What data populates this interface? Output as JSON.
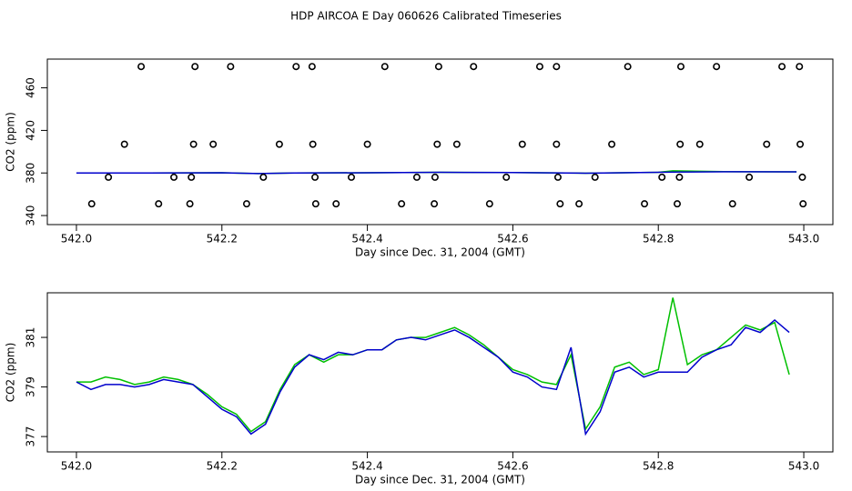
{
  "title": "HDP AIRCOA E  Day 060626  Calibrated Timeseries",
  "chart_data": [
    {
      "type": "line",
      "x_label": "Day since Dec. 31, 2004 (GMT)",
      "y_label": "CO2 (ppm)",
      "xlim": [
        541.96,
        543.04
      ],
      "ylim": [
        331.5,
        487
      ],
      "xticks": [
        {
          "value": 542.0,
          "label": "542.0"
        },
        542.2,
        542.4,
        542.6,
        542.8,
        {
          "value": 543.0,
          "label": "543.0"
        }
      ],
      "yticks": [
        340,
        380,
        420,
        460
      ],
      "x": [
        542.0,
        542.1,
        542.2,
        542.25,
        542.3,
        542.4,
        542.5,
        542.6,
        542.7,
        542.8,
        542.82,
        542.9,
        542.99
      ],
      "series": [
        {
          "color": "#00c000",
          "values": [
            380,
            380,
            380.2,
            379.5,
            380,
            380.2,
            380.6,
            380.4,
            379.8,
            380.6,
            382,
            381.2,
            381.0
          ]
        },
        {
          "color": "#0000cc",
          "values": [
            380,
            380,
            380.2,
            379.5,
            380,
            380.2,
            380.6,
            380.4,
            379.8,
            380.6,
            380.8,
            381.2,
            381.0
          ]
        }
      ],
      "points": {
        "color": "#000000",
        "x": [
          542.089,
          542.163,
          542.212,
          542.302,
          542.324,
          542.424,
          542.498,
          542.546,
          542.637,
          542.66,
          542.758,
          542.831,
          542.88,
          542.97,
          542.994,
          542.066,
          542.161,
          542.188,
          542.279,
          542.325,
          542.4,
          542.496,
          542.523,
          542.613,
          542.66,
          542.736,
          542.83,
          542.857,
          542.949,
          542.995,
          542.044,
          542.134,
          542.158,
          542.257,
          542.328,
          542.378,
          542.468,
          542.493,
          542.591,
          542.662,
          542.713,
          542.805,
          542.829,
          542.925,
          542.998,
          542.021,
          542.113,
          542.156,
          542.234,
          542.329,
          542.357,
          542.447,
          542.492,
          542.568,
          542.665,
          542.691,
          542.781,
          542.826,
          542.902,
          542.999
        ],
        "values": [
          480,
          480,
          480,
          480,
          480,
          480,
          480,
          480,
          480,
          480,
          480,
          480,
          480,
          480,
          480,
          407,
          407,
          407,
          407,
          407,
          407,
          407,
          407,
          407,
          407,
          407,
          407,
          407,
          407,
          407,
          376,
          376,
          376,
          376,
          376,
          376,
          376,
          376,
          376,
          376,
          376,
          376,
          376,
          376,
          376,
          351,
          351,
          351,
          351,
          351,
          351,
          351,
          351,
          351,
          351,
          351,
          351,
          351,
          351,
          351
        ]
      }
    },
    {
      "type": "line",
      "x_label": "Day since Dec. 31, 2004 (GMT)",
      "y_label": "CO2 (ppm)",
      "xlim": [
        541.96,
        543.04
      ],
      "ylim": [
        376.38,
        382.8
      ],
      "xticks": [
        {
          "value": 542.0,
          "label": "542.0"
        },
        542.2,
        542.4,
        542.6,
        542.8,
        {
          "value": 543.0,
          "label": "543.0"
        }
      ],
      "yticks": [
        377,
        379,
        381
      ],
      "x": [
        542.0,
        542.02,
        542.04,
        542.06,
        542.08,
        542.1,
        542.12,
        542.14,
        542.16,
        542.18,
        542.2,
        542.22,
        542.24,
        542.26,
        542.28,
        542.3,
        542.32,
        542.34,
        542.36,
        542.38,
        542.4,
        542.42,
        542.44,
        542.46,
        542.48,
        542.5,
        542.52,
        542.54,
        542.56,
        542.58,
        542.6,
        542.62,
        542.64,
        542.66,
        542.68,
        542.7,
        542.72,
        542.74,
        542.76,
        542.78,
        542.8,
        542.82,
        542.84,
        542.86,
        542.88,
        542.9,
        542.92,
        542.94,
        542.96,
        542.98
      ],
      "series": [
        {
          "color": "#00c000",
          "values": [
            379.2,
            379.2,
            379.4,
            379.3,
            379.1,
            379.2,
            379.4,
            379.3,
            379.1,
            378.7,
            378.2,
            377.9,
            377.2,
            377.6,
            378.9,
            379.9,
            380.3,
            380.0,
            380.3,
            380.3,
            380.5,
            380.5,
            380.9,
            381.0,
            381.0,
            381.2,
            381.4,
            381.1,
            380.7,
            380.2,
            379.7,
            379.5,
            379.2,
            379.1,
            380.3,
            377.3,
            378.2,
            379.8,
            380.0,
            379.5,
            379.7,
            382.6,
            379.9,
            380.3,
            380.5,
            381.0,
            381.5,
            381.3,
            381.6,
            379.5
          ]
        },
        {
          "color": "#0000cc",
          "values": [
            379.2,
            378.9,
            379.1,
            379.1,
            379.0,
            379.1,
            379.3,
            379.2,
            379.1,
            378.6,
            378.1,
            377.8,
            377.1,
            377.5,
            378.8,
            379.8,
            380.3,
            380.1,
            380.4,
            380.3,
            380.5,
            380.5,
            380.9,
            381.0,
            380.9,
            381.1,
            381.3,
            381.0,
            380.6,
            380.2,
            379.6,
            379.4,
            379.0,
            378.9,
            380.6,
            377.1,
            378.0,
            379.6,
            379.8,
            379.4,
            379.6,
            379.6,
            379.6,
            380.2,
            380.5,
            380.7,
            381.4,
            381.2,
            381.7,
            381.2
          ]
        }
      ]
    }
  ]
}
